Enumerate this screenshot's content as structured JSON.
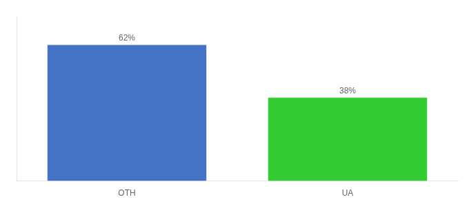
{
  "chart_data": {
    "type": "bar",
    "categories": [
      "OTH",
      "UA"
    ],
    "values": [
      62,
      38
    ],
    "value_labels": [
      "62%",
      "38%"
    ],
    "colors": [
      "#4472c4",
      "#33cc33"
    ],
    "ylim": [
      0,
      75
    ],
    "data_labels": true,
    "tick_labels": "x",
    "grid": false
  }
}
